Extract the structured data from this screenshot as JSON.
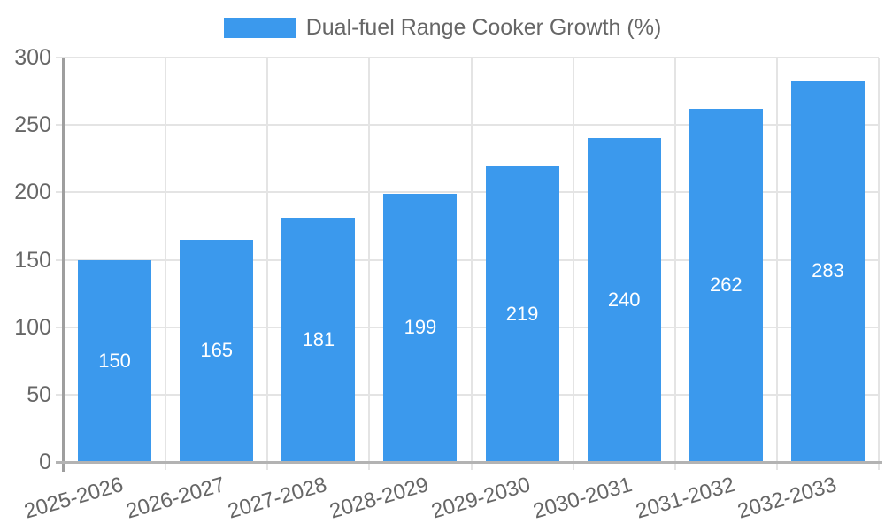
{
  "legend": {
    "label": "Dual-fuel Range Cooker Growth (%)"
  },
  "colors": {
    "bar": "#3b99ed",
    "grid": "#e4e4e4",
    "axis": "#9e9e9e",
    "zero_line": "#b3b3b3",
    "text": "#666666",
    "value_text": "#ffffff",
    "background": "#ffffff"
  },
  "chart_data": {
    "type": "bar",
    "title": "",
    "series_name": "Dual-fuel Range Cooker Growth (%)",
    "categories": [
      "2025-2026",
      "2026-2027",
      "2027-2028",
      "2028-2029",
      "2029-2030",
      "2030-2031",
      "2031-2032",
      "2032-2033"
    ],
    "values": [
      150,
      165,
      181,
      199,
      219,
      240,
      262,
      283
    ],
    "xlabel": "",
    "ylabel": "",
    "ylim": [
      0,
      300
    ],
    "yticks": [
      0,
      50,
      100,
      150,
      200,
      250,
      300
    ],
    "grid": true,
    "legend_position": "top-center",
    "value_label_position": "inside-center",
    "x_tick_rotation_deg": -16
  }
}
